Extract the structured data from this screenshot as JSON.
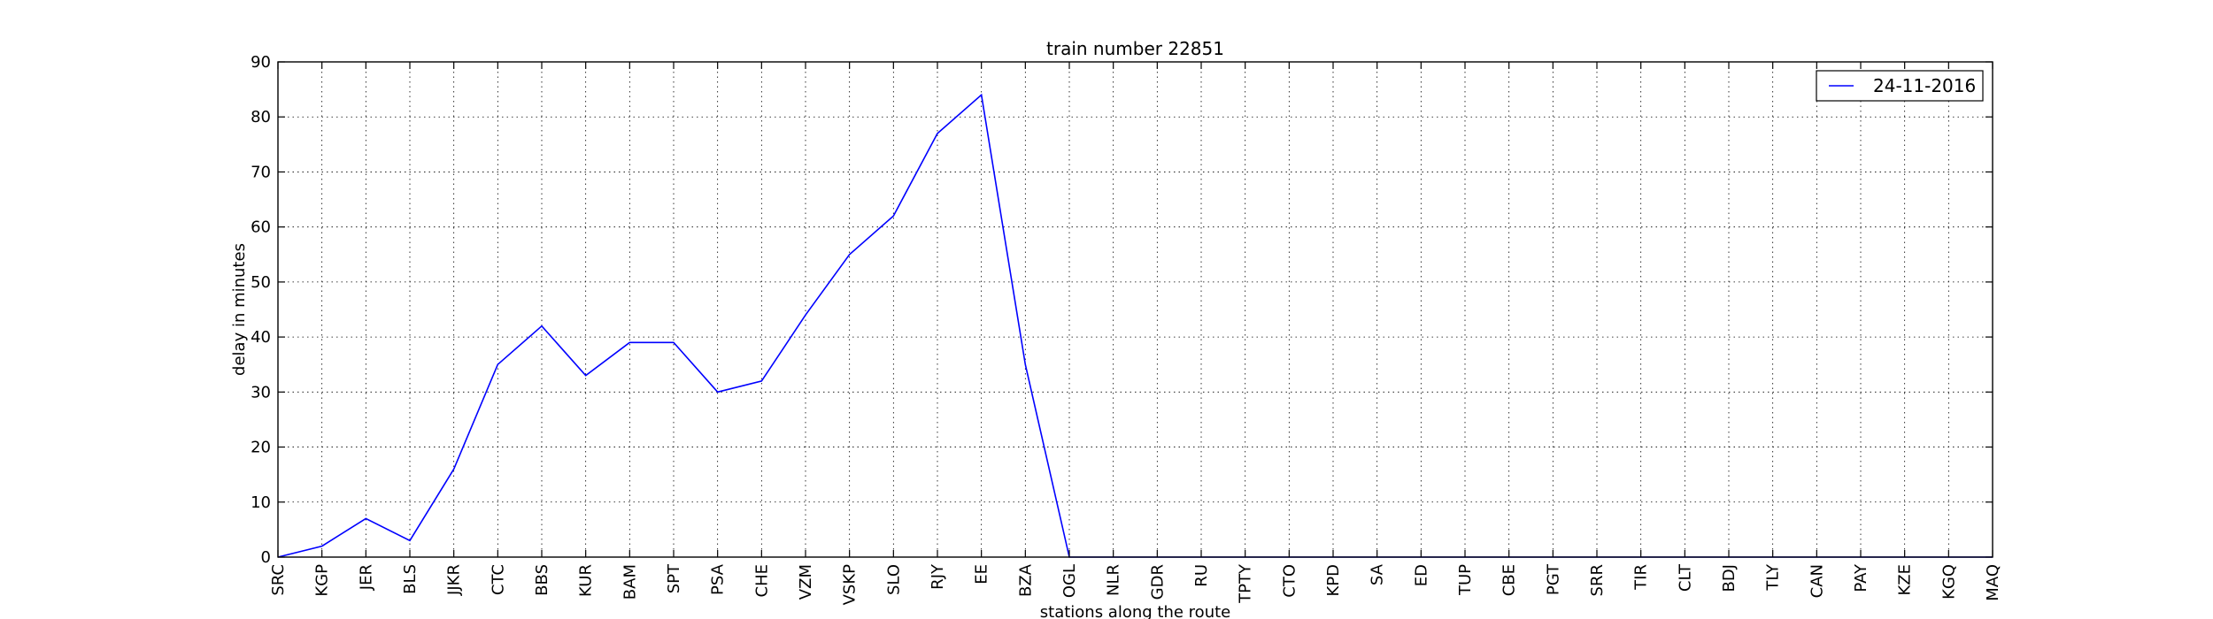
{
  "chart_data": {
    "type": "line",
    "title": "train number 22851",
    "xlabel": "stations along the route",
    "ylabel": "delay in minutes",
    "ylim": [
      0,
      90
    ],
    "yticks": [
      0,
      10,
      20,
      30,
      40,
      50,
      60,
      70,
      80,
      90
    ],
    "grid": true,
    "legend_position": "top-right",
    "categories": [
      "SRC",
      "KGP",
      "JER",
      "BLS",
      "JJKR",
      "CTC",
      "BBS",
      "KUR",
      "BAM",
      "SPT",
      "PSA",
      "CHE",
      "VZM",
      "VSKP",
      "SLO",
      "RJY",
      "EE",
      "BZA",
      "OGL",
      "NLR",
      "GDR",
      "RU",
      "TPTY",
      "CTO",
      "KPD",
      "SA",
      "ED",
      "TUP",
      "CBE",
      "PGT",
      "SRR",
      "TIR",
      "CLT",
      "BDJ",
      "TLY",
      "CAN",
      "PAY",
      "KZE",
      "KGQ",
      "MAQ"
    ],
    "series": [
      {
        "name": "24-11-2016",
        "color": "#0000ff",
        "values": [
          0,
          2,
          7,
          3,
          16,
          35,
          42,
          33,
          39,
          39,
          30,
          32,
          44,
          55,
          62,
          77,
          84,
          35,
          0,
          0,
          0,
          0,
          0,
          0,
          0,
          0,
          0,
          0,
          0,
          0,
          0,
          0,
          0,
          0,
          0,
          0,
          0,
          0,
          0,
          0
        ]
      }
    ]
  }
}
